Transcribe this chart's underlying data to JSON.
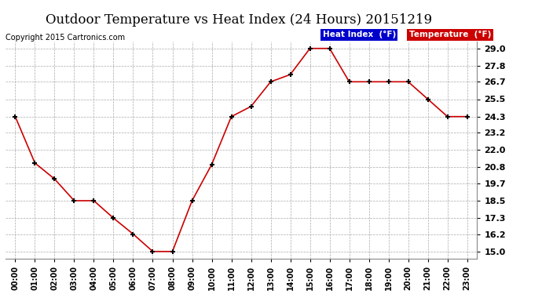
{
  "title": "Outdoor Temperature vs Heat Index (24 Hours) 20151219",
  "copyright": "Copyright 2015 Cartronics.com",
  "x_labels": [
    "00:00",
    "01:00",
    "02:00",
    "03:00",
    "04:00",
    "05:00",
    "06:00",
    "07:00",
    "08:00",
    "09:00",
    "10:00",
    "11:00",
    "12:00",
    "13:00",
    "14:00",
    "15:00",
    "16:00",
    "17:00",
    "18:00",
    "19:00",
    "20:00",
    "21:00",
    "22:00",
    "23:00"
  ],
  "temperature": [
    24.3,
    21.1,
    20.0,
    18.5,
    18.5,
    17.3,
    16.2,
    15.0,
    15.0,
    18.5,
    21.0,
    24.3,
    25.0,
    26.7,
    27.2,
    29.0,
    29.0,
    26.7,
    26.7,
    26.7,
    26.7,
    25.5,
    24.3,
    24.3
  ],
  "y_ticks": [
    15.0,
    16.2,
    17.3,
    18.5,
    19.7,
    20.8,
    22.0,
    23.2,
    24.3,
    25.5,
    26.7,
    27.8,
    29.0
  ],
  "ylim": [
    14.5,
    29.5
  ],
  "line_color": "#cc0000",
  "marker": "+",
  "bg_color": "#ffffff",
  "grid_color": "#aaaaaa",
  "legend_heat_bg": "#0000cc",
  "legend_temp_bg": "#cc0000",
  "legend_text_color": "#ffffff",
  "title_fontsize": 12,
  "copyright_fontsize": 7,
  "tick_fontsize": 8,
  "xtick_fontsize": 7
}
